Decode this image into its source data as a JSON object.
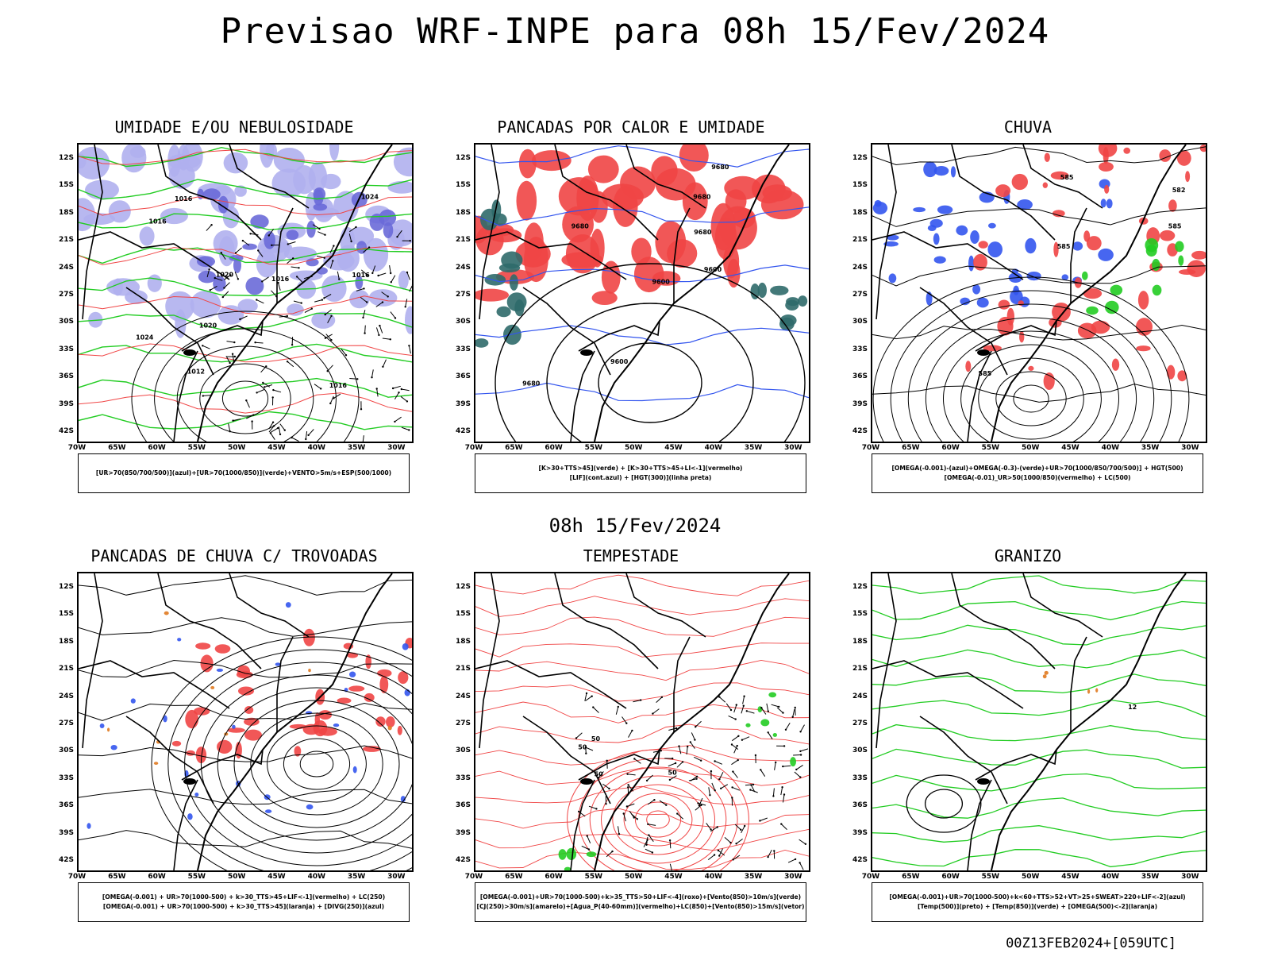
{
  "title": "Previsao WRF-INPE  para 08h 15/Fev/2024",
  "mid_date": "08h 15/Fev/2024",
  "footer": "00Z13FEB2024+[059UTC]",
  "lat_ticks": [
    "12S",
    "15S",
    "18S",
    "21S",
    "24S",
    "27S",
    "30S",
    "33S",
    "36S",
    "39S",
    "42S"
  ],
  "lon_ticks": [
    "70W",
    "65W",
    "60W",
    "55W",
    "50W",
    "45W",
    "40W",
    "35W",
    "30W"
  ],
  "colors": {
    "blue": "#3355ee",
    "green": "#22cc22",
    "red": "#f04545",
    "lavender": "#b0b0ee",
    "teal": "#2f6a6a",
    "orange": "#e07a20",
    "black": "#000000"
  },
  "panels": [
    {
      "title": "UMIDADE E/OU NEBULOSIDADE",
      "legend": [
        "[UR>70(850/700/500)](azul)+[UR>70(1000/850)](verde)+VENTO>5m/s+ESP(500/1000)"
      ],
      "labels": [
        "1016",
        "1016",
        "1020",
        "1016",
        "1024",
        "1016",
        "1016",
        "1012",
        "1020",
        "1024"
      ]
    },
    {
      "title": "PANCADAS POR CALOR E UMIDADE",
      "legend": [
        "[K>30+TTS>45](verde) + [K>30+TTS>45+LI<-1](vermelho)",
        "[LIF](cont.azul) + [HGT(300)](linha preta)"
      ],
      "labels": [
        "9680",
        "9680",
        "9680",
        "9680",
        "9600",
        "9600",
        "9680",
        "9600"
      ]
    },
    {
      "title": "CHUVA",
      "legend": [
        "[OMEGA(-0.001)-(azul)+OMEGA(-0.3)-(verde)+UR>70(1000/850/700/500)] + HGT(500)",
        "[OMEGA(-0.01)_UR>50(1000/850)(vermelho) + LC(500)"
      ],
      "labels": [
        "585",
        "585",
        "582",
        "585",
        "585"
      ]
    },
    {
      "title": "PANCADAS DE CHUVA C/ TROVOADAS",
      "legend": [
        "[OMEGA(-0.001) + UR>70(1000-500) + k>30_TTS>45+LIF<-1](vermelho) + LC(250)",
        "[OMEGA(-0.001) + UR>70(1000-500) + k>30_TTS>45](laranja) + [DIVG(250)](azul)"
      ],
      "labels": []
    },
    {
      "title": "TEMPESTADE",
      "legend": [
        "[OMEGA(-0.001)+UR>70(1000-500)+k>35_TTS>50+LIF<-4](roxo)+[Vento(850)>10m/s](verde)",
        "[CJ(250)>30m/s](amarelo)+[Agua_P(40-60mm)](vermelho)+LC(850)+[Vento(850)>15m/s](vetor)"
      ],
      "labels": [
        "50",
        "50",
        "50",
        "50"
      ]
    },
    {
      "title": "GRANIZO",
      "legend": [
        "[OMEGA(-0.001)+UR>70(1000-500)+k<60+TTS>52+VT>25+SWEAT>220+LIF<-2](azul)",
        "[Temp(500)](preto) + [Temp(850)](verde) + [OMEGA(500)<-2](laranja)"
      ],
      "labels": [
        "12"
      ]
    }
  ]
}
